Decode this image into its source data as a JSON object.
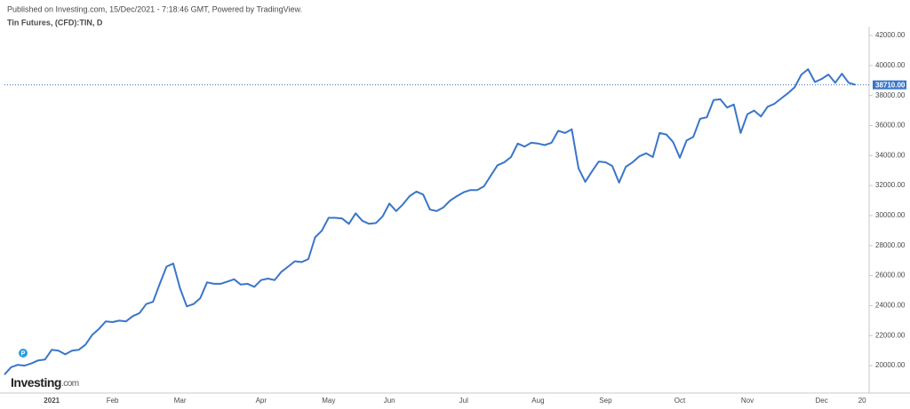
{
  "chart_data": {
    "type": "line",
    "header": "Published on Investing.com, 15/Dec/2021 - 7:18:46 GMT, Powered by TradingView.",
    "title": "Tin Futures, (CFD):TIN, D",
    "logo": {
      "brand": "Investing",
      "suffix": ".com"
    },
    "marker": "P",
    "categories": [
      null,
      null,
      null,
      null,
      null,
      null,
      null,
      "2021",
      null,
      null,
      null,
      null,
      null,
      null,
      null,
      null,
      "Feb",
      null,
      null,
      null,
      null,
      null,
      null,
      null,
      null,
      null,
      "Mar",
      null,
      null,
      null,
      null,
      null,
      null,
      null,
      null,
      null,
      null,
      null,
      "Apr",
      null,
      null,
      null,
      null,
      null,
      null,
      null,
      null,
      null,
      "May",
      null,
      null,
      null,
      null,
      null,
      null,
      null,
      null,
      "Jun",
      null,
      null,
      null,
      null,
      null,
      null,
      null,
      null,
      null,
      null,
      "Jul",
      null,
      null,
      null,
      null,
      null,
      null,
      null,
      null,
      null,
      null,
      "Aug",
      null,
      null,
      null,
      null,
      null,
      null,
      null,
      null,
      null,
      "Sep",
      null,
      null,
      null,
      null,
      null,
      null,
      null,
      null,
      null,
      null,
      "Oct",
      null,
      null,
      null,
      null,
      null,
      null,
      null,
      null,
      null,
      "Nov",
      null,
      null,
      null,
      null,
      null,
      null,
      null,
      null,
      null,
      null,
      "Dec",
      null,
      null,
      null,
      null,
      null,
      "20"
    ],
    "series": [
      {
        "name": "Tin Futures",
        "color": "#3a76c9",
        "values": [
          19400,
          19900,
          20050,
          20000,
          20150,
          20350,
          20400,
          21050,
          21000,
          20750,
          21000,
          21050,
          21400,
          22050,
          22450,
          22950,
          22900,
          23000,
          22950,
          23300,
          23500,
          24100,
          24250,
          25450,
          26600,
          26800,
          25150,
          23950,
          24100,
          24500,
          25550,
          25450,
          25450,
          25600,
          25750,
          25400,
          25450,
          25250,
          25700,
          25800,
          25700,
          26250,
          26600,
          26950,
          26900,
          27100,
          28550,
          29000,
          29850,
          29850,
          29800,
          29450,
          30150,
          29650,
          29450,
          29500,
          29950,
          30800,
          30300,
          30750,
          31300,
          31600,
          31400,
          30400,
          30300,
          30550,
          31000,
          31300,
          31550,
          31700,
          31700,
          31950,
          32650,
          33350,
          33550,
          33900,
          34800,
          34600,
          34850,
          34800,
          34700,
          34850,
          35650,
          35500,
          35750,
          33150,
          32250,
          32950,
          33600,
          33550,
          33300,
          32200,
          33250,
          33550,
          33950,
          34150,
          33900,
          35500,
          35400,
          34900,
          33850,
          35000,
          35250,
          36450,
          36550,
          37700,
          37750,
          37200,
          37400,
          35500,
          36750,
          37000,
          36600,
          37250,
          37450,
          37800,
          38150,
          38550,
          39400,
          39750,
          38900,
          39100,
          39400,
          38850,
          39450,
          38850,
          38710,
          null
        ]
      }
    ],
    "last_price": {
      "value": 38710,
      "label": "38710.00"
    },
    "ylim": [
      18350,
      42000
    ],
    "yticks": [
      {
        "value": 20000,
        "label": "20000.00"
      },
      {
        "value": 22000,
        "label": "22000.00"
      },
      {
        "value": 24000,
        "label": "24000.00"
      },
      {
        "value": 26000,
        "label": "26000.00"
      },
      {
        "value": 28000,
        "label": "28000.00"
      },
      {
        "value": 30000,
        "label": "30000.00"
      },
      {
        "value": 32000,
        "label": "32000.00"
      },
      {
        "value": 34000,
        "label": "34000.00"
      },
      {
        "value": 36000,
        "label": "36000.00"
      },
      {
        "value": 38000,
        "label": "38000.00"
      },
      {
        "value": 40000,
        "label": "40000.00"
      },
      {
        "value": 42000,
        "label": "42000.00"
      }
    ],
    "grid": false
  }
}
